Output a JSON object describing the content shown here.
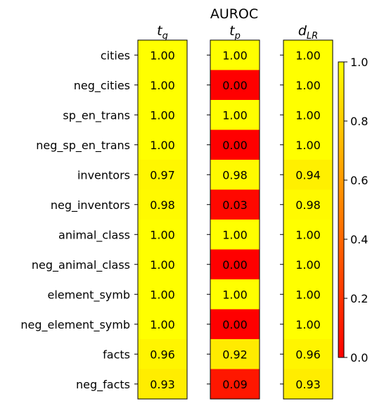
{
  "chart_data": {
    "type": "heatmap",
    "title": "AUROC",
    "columns": [
      {
        "main": "t",
        "sub": "g"
      },
      {
        "main": "t",
        "sub": "p"
      },
      {
        "main": "d",
        "sub": "LR"
      }
    ],
    "rows": [
      "cities",
      "neg_cities",
      "sp_en_trans",
      "neg_sp_en_trans",
      "inventors",
      "neg_inventors",
      "animal_class",
      "neg_animal_class",
      "element_symb",
      "neg_element_symb",
      "facts",
      "neg_facts"
    ],
    "values": [
      [
        1.0,
        1.0,
        1.0
      ],
      [
        1.0,
        0.0,
        1.0
      ],
      [
        1.0,
        1.0,
        1.0
      ],
      [
        1.0,
        0.0,
        1.0
      ],
      [
        0.97,
        0.98,
        0.94
      ],
      [
        0.98,
        0.03,
        0.98
      ],
      [
        1.0,
        1.0,
        1.0
      ],
      [
        1.0,
        0.0,
        1.0
      ],
      [
        1.0,
        1.0,
        1.0
      ],
      [
        1.0,
        0.0,
        1.0
      ],
      [
        0.96,
        0.92,
        0.96
      ],
      [
        0.93,
        0.09,
        0.93
      ]
    ],
    "value_labels": [
      [
        "1.00",
        "1.00",
        "1.00"
      ],
      [
        "1.00",
        "0.00",
        "1.00"
      ],
      [
        "1.00",
        "1.00",
        "1.00"
      ],
      [
        "1.00",
        "0.00",
        "1.00"
      ],
      [
        "0.97",
        "0.98",
        "0.94"
      ],
      [
        "0.98",
        "0.03",
        "0.98"
      ],
      [
        "1.00",
        "1.00",
        "1.00"
      ],
      [
        "1.00",
        "0.00",
        "1.00"
      ],
      [
        "1.00",
        "1.00",
        "1.00"
      ],
      [
        "1.00",
        "0.00",
        "1.00"
      ],
      [
        "0.96",
        "0.92",
        "0.96"
      ],
      [
        "0.93",
        "0.09",
        "0.93"
      ]
    ],
    "colormap": "autumn",
    "colormap_endpoints": {
      "low": "#ff0000",
      "high": "#ffff00"
    },
    "vmin": 0.0,
    "vmax": 1.0,
    "colorbar_ticks": [
      "0.0",
      "0.2",
      "0.4",
      "0.6",
      "0.8",
      "1.0"
    ],
    "legend_placement": "right"
  }
}
